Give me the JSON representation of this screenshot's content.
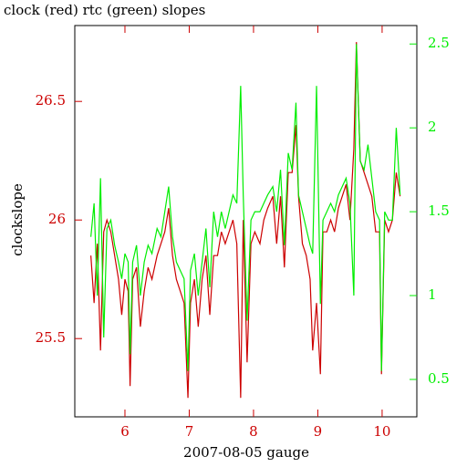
{
  "chart_data": {
    "type": "line",
    "title": "clock (red) rtc (green) slopes",
    "xlabel": "2007-08-05 gauge",
    "ylabel": "clockslope",
    "x": [
      5.47,
      5.52,
      5.57,
      5.62,
      5.67,
      5.72,
      5.78,
      5.84,
      5.9,
      5.95,
      6.0,
      6.05,
      6.08,
      6.12,
      6.18,
      6.24,
      6.3,
      6.36,
      6.42,
      6.5,
      6.56,
      6.62,
      6.68,
      6.74,
      6.8,
      6.86,
      6.92,
      6.98,
      7.02,
      7.08,
      7.14,
      7.2,
      7.26,
      7.32,
      7.38,
      7.44,
      7.5,
      7.56,
      7.62,
      7.68,
      7.74,
      7.8,
      7.84,
      7.9,
      7.96,
      8.02,
      8.1,
      8.16,
      8.22,
      8.3,
      8.36,
      8.42,
      8.48,
      8.54,
      8.6,
      8.66,
      8.7,
      8.76,
      8.82,
      8.88,
      8.92,
      8.98,
      9.04,
      9.08,
      9.14,
      9.2,
      9.26,
      9.32,
      9.38,
      9.44,
      9.5,
      9.56,
      9.6,
      9.66,
      9.72,
      9.78,
      9.84,
      9.9,
      9.96,
      9.99,
      10.04,
      10.1,
      10.16,
      10.22,
      10.28
    ],
    "series": [
      {
        "name": "clock",
        "color": "#cc0000",
        "axis": "y",
        "values": [
          25.85,
          25.65,
          25.9,
          25.45,
          25.95,
          26.0,
          25.95,
          25.85,
          25.75,
          25.6,
          25.75,
          25.7,
          25.3,
          25.75,
          25.8,
          25.55,
          25.7,
          25.8,
          25.75,
          25.85,
          25.9,
          25.95,
          26.05,
          25.85,
          25.75,
          25.7,
          25.65,
          25.25,
          25.65,
          25.75,
          25.55,
          25.75,
          25.85,
          25.6,
          25.85,
          25.85,
          25.95,
          25.9,
          25.95,
          26.0,
          25.9,
          25.25,
          26.0,
          25.4,
          25.9,
          25.95,
          25.9,
          26.0,
          26.05,
          26.1,
          25.9,
          26.1,
          25.8,
          26.2,
          26.2,
          26.4,
          26.1,
          25.9,
          25.85,
          25.75,
          25.45,
          25.65,
          25.35,
          25.95,
          25.95,
          26.0,
          25.95,
          26.05,
          26.1,
          26.15,
          26.0,
          26.3,
          26.75,
          26.25,
          26.2,
          26.15,
          26.1,
          25.95,
          25.95,
          25.35,
          26.0,
          25.95,
          26.0,
          26.2,
          26.1
        ]
      },
      {
        "name": "rtc",
        "color": "#00ee00",
        "axis": "y2",
        "values": [
          1.35,
          1.55,
          1.0,
          1.7,
          0.75,
          1.4,
          1.45,
          1.3,
          1.2,
          1.1,
          1.25,
          1.2,
          0.65,
          1.2,
          1.3,
          1.0,
          1.2,
          1.3,
          1.25,
          1.4,
          1.35,
          1.5,
          1.65,
          1.35,
          1.2,
          1.15,
          1.1,
          0.55,
          1.15,
          1.25,
          1.0,
          1.2,
          1.4,
          1.05,
          1.5,
          1.35,
          1.5,
          1.4,
          1.5,
          1.6,
          1.55,
          2.25,
          1.6,
          0.85,
          1.45,
          1.5,
          1.5,
          1.55,
          1.6,
          1.65,
          1.5,
          1.75,
          1.3,
          1.85,
          1.75,
          2.15,
          1.6,
          1.5,
          1.4,
          1.3,
          1.25,
          2.25,
          0.95,
          1.45,
          1.5,
          1.55,
          1.5,
          1.6,
          1.65,
          1.7,
          1.55,
          1.0,
          2.5,
          1.8,
          1.75,
          1.9,
          1.7,
          1.5,
          1.45,
          0.55,
          1.5,
          1.45,
          1.45,
          2.0,
          1.6
        ]
      }
    ],
    "xlim": [
      5.22,
      10.54
    ],
    "xticks": [
      6,
      7,
      8,
      9,
      10
    ],
    "ylim": [
      25.17,
      26.82
    ],
    "yticks": [
      25.5,
      26,
      26.5
    ],
    "y2lim": [
      0.277,
      2.61
    ],
    "y2ticks": [
      0.5,
      1,
      1.5,
      2,
      2.5
    ],
    "axis_color": "#cc0000",
    "axis2_color": "#00ee00"
  }
}
